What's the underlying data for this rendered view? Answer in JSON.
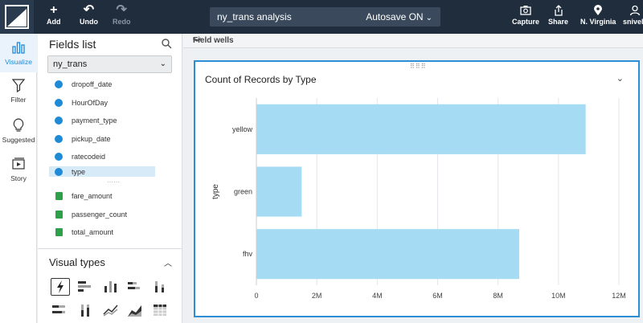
{
  "topbar": {
    "buttons": [
      {
        "label": "Add",
        "icon": "plus-icon"
      },
      {
        "label": "Undo",
        "icon": "undo-icon"
      },
      {
        "label": "Redo",
        "icon": "redo-icon"
      }
    ],
    "analysis_name": "ny_trans analysis",
    "autosave": "Autosave ON",
    "right_buttons": [
      {
        "label": "Capture",
        "icon": "camera-icon"
      },
      {
        "label": "Share",
        "icon": "share-icon"
      },
      {
        "label": "N. Virginia",
        "icon": "location-pin-icon"
      },
      {
        "label": "snively",
        "icon": "user-icon"
      }
    ]
  },
  "rail": [
    {
      "label": "Visualize",
      "icon": "bar-chart-icon",
      "active": true
    },
    {
      "label": "Filter",
      "icon": "funnel-icon"
    },
    {
      "label": "Suggested",
      "icon": "lightbulb-icon"
    },
    {
      "label": "Story",
      "icon": "story-icon"
    }
  ],
  "fields_panel": {
    "title": "Fields list",
    "dataset": "ny_trans",
    "dimensions": [
      "dropoff_date",
      "HourOfDay",
      "payment_type",
      "pickup_date",
      "ratecodeid",
      "type"
    ],
    "selected": "type",
    "measures": [
      "fare_amount",
      "passenger_count",
      "total_amount"
    ],
    "visual_types_title": "Visual types"
  },
  "field_wells": "Field wells",
  "visual": {
    "title": "Count of Records by Type"
  },
  "colors": {
    "accent": "#2c8fd6",
    "bar": "#a6dcf3",
    "topbar": "#1f2d3d"
  },
  "chart_data": {
    "type": "bar",
    "orientation": "horizontal",
    "title": "Count of Records by Type",
    "ylabel": "type",
    "xlabel": "",
    "categories": [
      "yellow",
      "green",
      "fhv"
    ],
    "values": [
      10900000,
      1500000,
      8700000
    ],
    "xlim": [
      0,
      12000000
    ],
    "xticks": [
      0,
      2000000,
      4000000,
      6000000,
      8000000,
      10000000,
      12000000
    ],
    "xtick_labels": [
      "0",
      "2M",
      "4M",
      "6M",
      "8M",
      "10M",
      "12M"
    ],
    "grid": true
  }
}
